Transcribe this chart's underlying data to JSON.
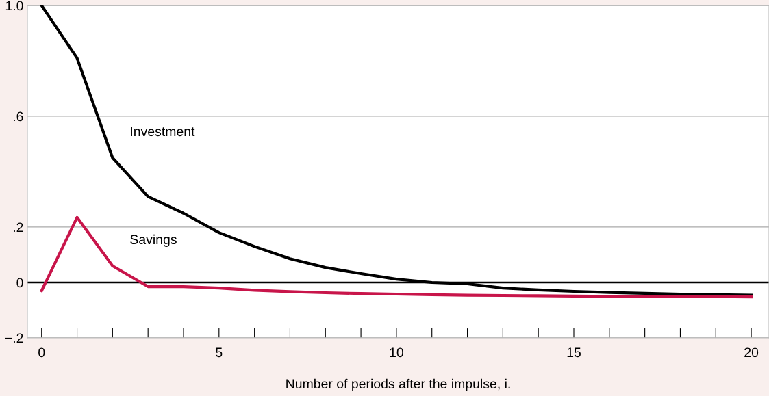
{
  "chart_data": {
    "type": "line",
    "xlabel": "Number of periods after the impulse, i.",
    "x": [
      0,
      1,
      2,
      3,
      4,
      5,
      6,
      7,
      8,
      9,
      10,
      11,
      12,
      13,
      14,
      15,
      16,
      17,
      18,
      19,
      20
    ],
    "series": [
      {
        "name": "Investment",
        "color": "#000000",
        "values": [
          1.0,
          0.81,
          0.45,
          0.31,
          0.25,
          0.18,
          0.13,
          0.086,
          0.054,
          0.032,
          0.012,
          0.0,
          -0.005,
          -0.02,
          -0.027,
          -0.032,
          -0.036,
          -0.039,
          -0.042,
          -0.044,
          -0.046
        ]
      },
      {
        "name": "Savings",
        "color": "#c8154a",
        "values": [
          -0.03,
          0.235,
          0.06,
          -0.015,
          -0.015,
          -0.02,
          -0.028,
          -0.033,
          -0.037,
          -0.04,
          -0.042,
          -0.044,
          -0.046,
          -0.047,
          -0.048,
          -0.049,
          -0.05,
          -0.05,
          -0.051,
          -0.051,
          -0.052
        ]
      }
    ],
    "xlim": [
      -0.4,
      20.5
    ],
    "ylim": [
      -0.2,
      1.0
    ],
    "xticks": [
      0,
      {
        "value": 1,
        "label": null
      },
      {
        "value": 2,
        "label": null
      },
      {
        "value": 3,
        "label": null
      },
      {
        "value": 4,
        "label": null
      },
      5,
      {
        "value": 6,
        "label": null
      },
      {
        "value": 7,
        "label": null
      },
      {
        "value": 8,
        "label": null
      },
      {
        "value": 9,
        "label": null
      },
      10,
      {
        "value": 11,
        "label": null
      },
      {
        "value": 12,
        "label": null
      },
      {
        "value": 13,
        "label": null
      },
      {
        "value": 14,
        "label": null
      },
      15,
      {
        "value": 16,
        "label": null
      },
      {
        "value": 17,
        "label": null
      },
      {
        "value": 18,
        "label": null
      },
      {
        "value": 19,
        "label": null
      },
      20
    ],
    "yticks": [
      {
        "value": -0.2,
        "label": "−.2"
      },
      0,
      {
        "value": 0.2,
        "label": ".2"
      },
      {
        "value": 0.6,
        "label": ".6"
      },
      {
        "value": 1.0,
        "label": "1.0"
      }
    ],
    "grid": "y",
    "legend": false,
    "marker": "none",
    "line_style": "solid",
    "ref_lines": [
      {
        "axis": "y",
        "value": 0,
        "label": null,
        "color": "#000000"
      }
    ]
  }
}
